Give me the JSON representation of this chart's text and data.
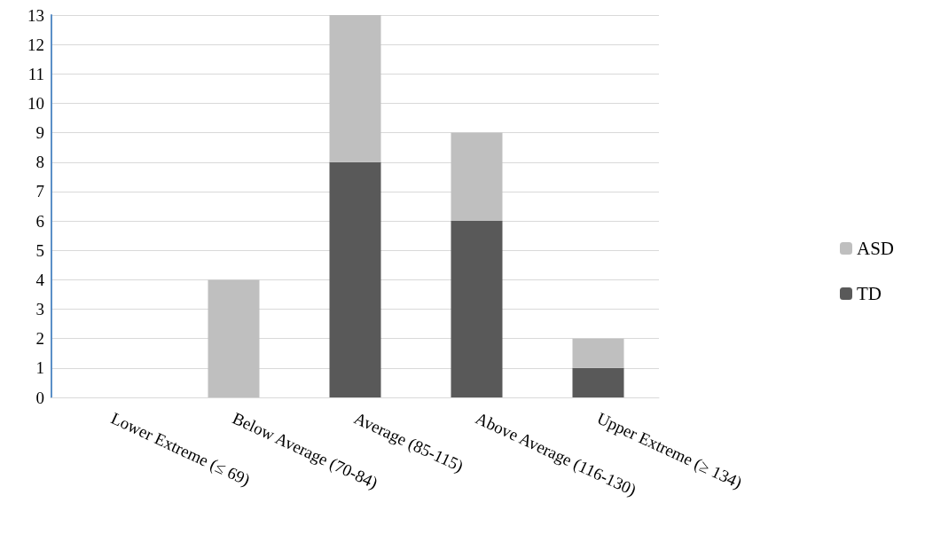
{
  "chart_data": {
    "type": "bar",
    "stacked": true,
    "categories": [
      "Lower Extreme (≤ 69)",
      "Below Average (70-84)",
      "Average (85-115)",
      "Above Average (116-130)",
      "Upper Extreme (≥ 134)"
    ],
    "series": [
      {
        "name": "TD",
        "color": "#595959",
        "values": [
          0,
          0,
          8,
          6,
          1
        ]
      },
      {
        "name": "ASD",
        "color": "#bfbfbf",
        "values": [
          0,
          4,
          5,
          3,
          1
        ]
      }
    ],
    "ylim": [
      0,
      13
    ],
    "yticks": [
      0,
      1,
      2,
      3,
      4,
      5,
      6,
      7,
      8,
      9,
      10,
      11,
      12,
      13
    ],
    "grid": "y",
    "legend": "right"
  }
}
